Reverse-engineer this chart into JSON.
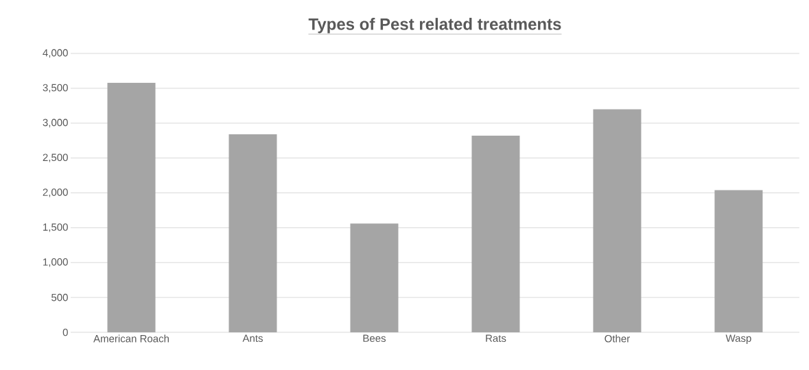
{
  "chart_data": {
    "type": "bar",
    "title": "Types of Pest related treatments",
    "categories": [
      "American Roach",
      "Ants",
      "Bees",
      "Rats",
      "Other",
      "Wasp"
    ],
    "values": [
      3580,
      2840,
      1560,
      2820,
      3200,
      2040
    ],
    "color": "#a5a5a5",
    "ylim": [
      0,
      4000
    ],
    "yticks": [
      0,
      500,
      {
        "value": 1000,
        "label": "1,000"
      },
      {
        "value": 1500,
        "label": "1,500"
      },
      {
        "value": 2000,
        "label": "2,000"
      },
      {
        "value": 2500,
        "label": "2,500"
      },
      {
        "value": 3000,
        "label": "3,000"
      },
      {
        "value": 3500,
        "label": "3,500"
      },
      {
        "value": 4000,
        "label": "4,000"
      }
    ],
    "grid": "y"
  }
}
